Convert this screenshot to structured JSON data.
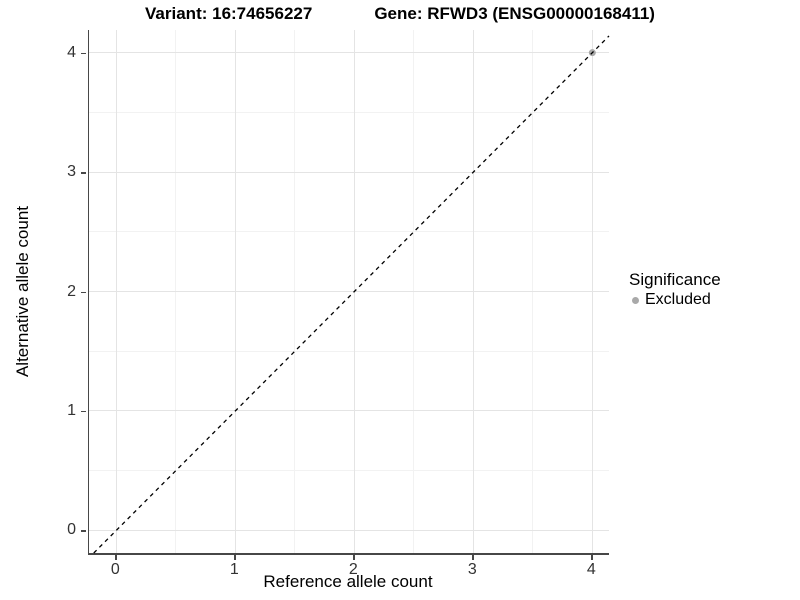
{
  "titles": {
    "variant": "Variant: 16:74656227",
    "gene": "Gene: RFWD3 (ENSG00000168411)"
  },
  "chart_data": {
    "type": "scatter",
    "title_left": "Variant: 16:74656227",
    "title_right": "Gene: RFWD3 (ENSG00000168411)",
    "xlabel": "Reference allele count",
    "ylabel": "Alternative allele count",
    "xlim": [
      -0.23,
      4.14
    ],
    "ylim": [
      -0.19,
      4.19
    ],
    "xticks": [
      0,
      1,
      2,
      3,
      4
    ],
    "yticks": [
      0,
      1,
      2,
      3,
      4
    ],
    "minor_step": 0.5,
    "grid": "major-and-minor",
    "points": [
      {
        "x": 4,
        "y": 4,
        "series": "Excluded"
      }
    ],
    "reference_line": {
      "slope": 1,
      "intercept": 0,
      "style": "dashed",
      "color": "#000000"
    },
    "legend": {
      "position": "right",
      "title": "Significance",
      "items": [
        {
          "label": "Excluded",
          "color": "#a9a9a9"
        }
      ]
    }
  },
  "colors": {
    "background": "#ffffff",
    "grid_major": "#e4e4e4",
    "grid_minor": "#f2f2f2",
    "axis_line": "#474747",
    "tick_text": "#333333",
    "text": "#000000",
    "point": "#a9a9a9",
    "line": "#000000"
  }
}
